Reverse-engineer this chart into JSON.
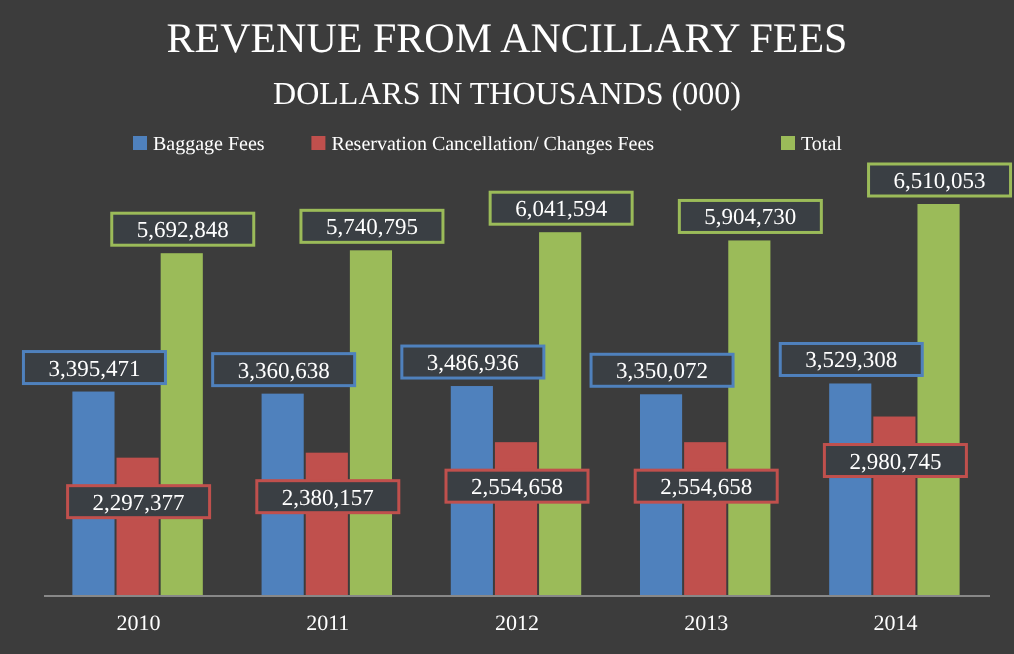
{
  "chart_data": {
    "type": "bar",
    "title": "REVENUE FROM ANCILLARY FEES",
    "subtitle": "DOLLARS IN THOUSANDS (000)",
    "categories": [
      "2010",
      "2011",
      "2012",
      "2013",
      "2014"
    ],
    "series": [
      {
        "name": "Baggage Fees",
        "color": "#4f81bd",
        "values": [
          3395471,
          3360638,
          3486936,
          3350072,
          3529308
        ],
        "value_labels": [
          "3,395,471",
          "3,360,638",
          "3,486,936",
          "3,350,072",
          "3,529,308"
        ]
      },
      {
        "name": "Reservation Cancellation/ Changes Fees",
        "color": "#c0504d",
        "values": [
          2297377,
          2380157,
          2554658,
          2554658,
          2980745
        ],
        "value_labels": [
          "2,297,377",
          "2,380,157",
          "2,554,658",
          "2,554,658",
          "2,980,745"
        ]
      },
      {
        "name": "Total",
        "color": "#9bbb59",
        "values": [
          5692848,
          5740795,
          6041594,
          5904730,
          6510053
        ],
        "value_labels": [
          "5,692,848",
          "5,740,795",
          "6,041,594",
          "5,904,730",
          "6,510,053"
        ]
      }
    ],
    "legend": "top"
  }
}
